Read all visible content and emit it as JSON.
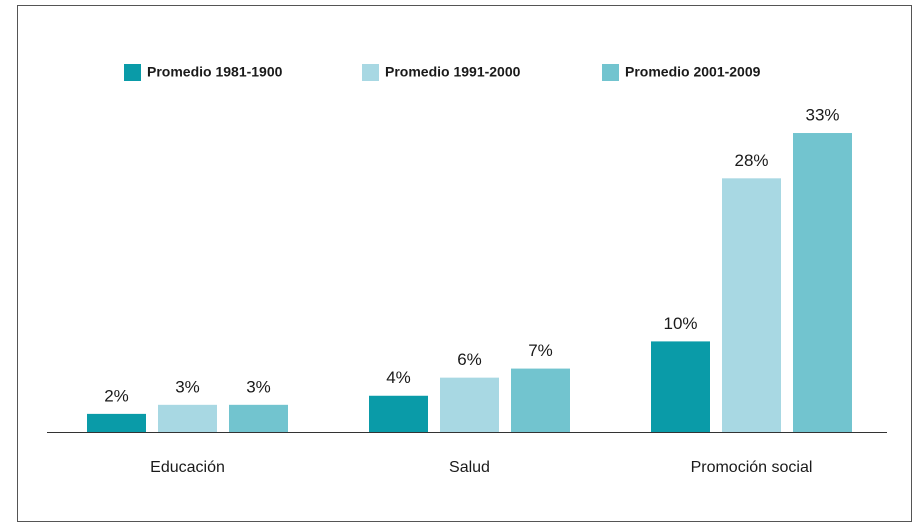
{
  "chart_data": {
    "type": "bar",
    "categories": [
      "Educación",
      "Salud",
      "Promoción social"
    ],
    "series": [
      {
        "name": "Promedio 1981-1900",
        "color": "#0a9ba8",
        "values": [
          2,
          4,
          10
        ],
        "value_labels": [
          "2%",
          "4%",
          "10%"
        ]
      },
      {
        "name": "Promedio 1991-2000",
        "color": "#a8d8e3",
        "values": [
          3,
          6,
          28
        ],
        "value_labels": [
          "3%",
          "6%",
          "28%"
        ]
      },
      {
        "name": "Promedio 2001-2009",
        "color": "#72c4cf",
        "values": [
          3,
          7,
          33
        ],
        "value_labels": [
          "3%",
          "7%",
          "33%"
        ]
      }
    ],
    "legend": "top"
  }
}
